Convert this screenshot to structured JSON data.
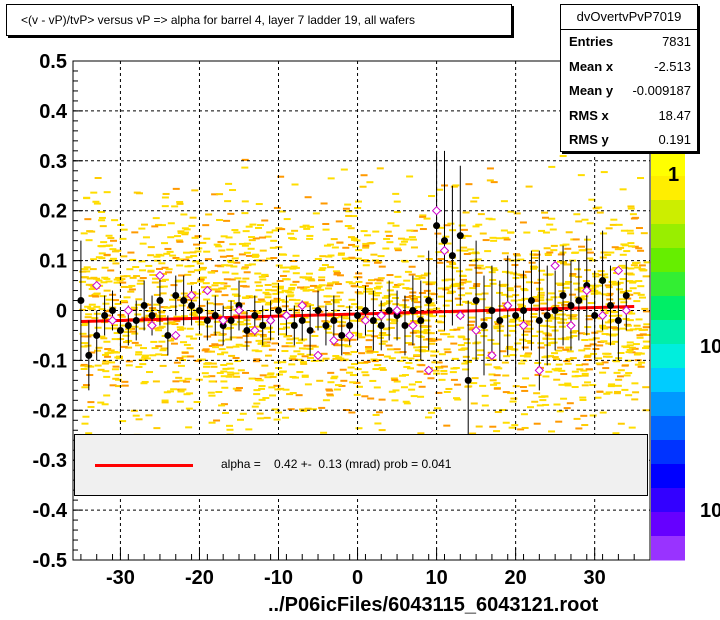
{
  "title": "<(v - vP)/tvP> versus   vP => alpha for barrel 4, layer 7 ladder 19, all wafers",
  "stats": {
    "name": "dvOvertvPvP7019",
    "rows": [
      {
        "label": "Entries",
        "value": "7831"
      },
      {
        "label": "Mean x",
        "value": "-2.513"
      },
      {
        "label": "Mean y",
        "value": "-0.009187"
      },
      {
        "label": "RMS x",
        "value": "18.47"
      },
      {
        "label": "RMS y",
        "value": "0.191"
      }
    ]
  },
  "fit": {
    "text": "alpha =    0.42 +-  0.13 (mrad) prob = 0.041",
    "color": "#ff0000"
  },
  "footer": "../P06icFiles/6043115_6043121.root",
  "palette_labels": [
    "1",
    "10",
    "10"
  ],
  "colors": {
    "background_density": "#ffdd00",
    "points": "#000000",
    "open_markers": "#cc00cc",
    "fit_line": "#ff0000"
  },
  "chart_data": {
    "type": "scatter",
    "xlim": [
      -36,
      37
    ],
    "ylim": [
      -0.5,
      0.5
    ],
    "x_ticks": [
      -30,
      -20,
      -10,
      0,
      10,
      20,
      30
    ],
    "y_ticks": [
      -0.5,
      -0.4,
      -0.3,
      -0.2,
      -0.1,
      0,
      0.1,
      0.2,
      0.3,
      0.4,
      0.5
    ],
    "grid": true,
    "fit_line": {
      "x": [
        -35,
        35
      ],
      "y": [
        -0.022,
        0.008
      ]
    },
    "profile_points": {
      "x": [
        -35,
        -34,
        -33,
        -32,
        -31,
        -30,
        -29,
        -28,
        -27,
        -26,
        -25,
        -24,
        -23,
        -22,
        -21,
        -20,
        -19,
        -18,
        -17,
        -16,
        -15,
        -14,
        -13,
        -12,
        -11,
        -10,
        -9,
        -8,
        -7,
        -6,
        -5,
        -4,
        -3,
        -2,
        -1,
        0,
        1,
        2,
        3,
        4,
        5,
        6,
        7,
        8,
        9,
        10,
        11,
        12,
        13,
        14,
        15,
        16,
        17,
        18,
        19,
        20,
        21,
        22,
        23,
        24,
        25,
        26,
        27,
        28,
        29,
        30,
        31,
        32,
        33,
        34
      ],
      "y": [
        0.02,
        -0.09,
        -0.05,
        -0.01,
        0.0,
        -0.04,
        -0.03,
        -0.02,
        0.01,
        -0.01,
        0.02,
        -0.05,
        0.03,
        0.02,
        0.01,
        0.0,
        -0.02,
        -0.01,
        -0.03,
        -0.02,
        0.01,
        -0.04,
        -0.01,
        -0.03,
        -0.02,
        0.0,
        -0.01,
        -0.03,
        -0.02,
        -0.04,
        0.0,
        -0.03,
        -0.02,
        -0.05,
        -0.03,
        -0.01,
        0.0,
        -0.02,
        -0.03,
        0.0,
        -0.01,
        -0.03,
        0.0,
        -0.02,
        0.02,
        0.17,
        0.14,
        0.11,
        0.15,
        -0.14,
        0.02,
        -0.03,
        0.0,
        -0.02,
        0.01,
        -0.01,
        0.0,
        0.02,
        -0.02,
        -0.01,
        0.0,
        0.03,
        0.01,
        0.02,
        0.05,
        -0.01,
        0.06,
        0.01,
        -0.02,
        0.03
      ],
      "err": [
        0.12,
        0.07,
        0.05,
        0.04,
        0.04,
        0.04,
        0.04,
        0.04,
        0.05,
        0.04,
        0.05,
        0.04,
        0.04,
        0.05,
        0.04,
        0.04,
        0.04,
        0.04,
        0.04,
        0.04,
        0.05,
        0.04,
        0.04,
        0.04,
        0.04,
        0.05,
        0.04,
        0.04,
        0.04,
        0.05,
        0.04,
        0.04,
        0.05,
        0.04,
        0.04,
        0.05,
        0.05,
        0.06,
        0.05,
        0.06,
        0.05,
        0.06,
        0.07,
        0.08,
        0.1,
        0.15,
        0.18,
        0.14,
        0.14,
        0.16,
        0.12,
        0.1,
        0.09,
        0.08,
        0.1,
        0.12,
        0.08,
        0.1,
        0.14,
        0.1,
        0.08,
        0.1,
        0.09,
        0.08,
        0.1,
        0.09,
        0.1,
        0.08,
        0.08,
        0.07
      ]
    },
    "open_points": {
      "x": [
        -33,
        -31,
        -29,
        -26,
        -25,
        -23,
        -21,
        -19,
        -17,
        -15,
        -13,
        -11,
        -9,
        -7,
        -5,
        -3,
        -1,
        1,
        3,
        5,
        7,
        9,
        10,
        11,
        13,
        15,
        17,
        19,
        21,
        23,
        25,
        27,
        29,
        31,
        33,
        34
      ],
      "y": [
        0.05,
        -0.02,
        0.0,
        -0.03,
        0.07,
        -0.05,
        0.03,
        0.04,
        -0.02,
        0.0,
        -0.04,
        -0.02,
        -0.01,
        0.01,
        -0.09,
        -0.06,
        -0.05,
        -0.02,
        -0.01,
        0.0,
        -0.03,
        -0.12,
        0.2,
        0.12,
        -0.01,
        -0.04,
        -0.09,
        0.01,
        -0.03,
        -0.12,
        0.09,
        -0.03,
        0.04,
        -0.01,
        0.08,
        0.0
      ]
    }
  }
}
